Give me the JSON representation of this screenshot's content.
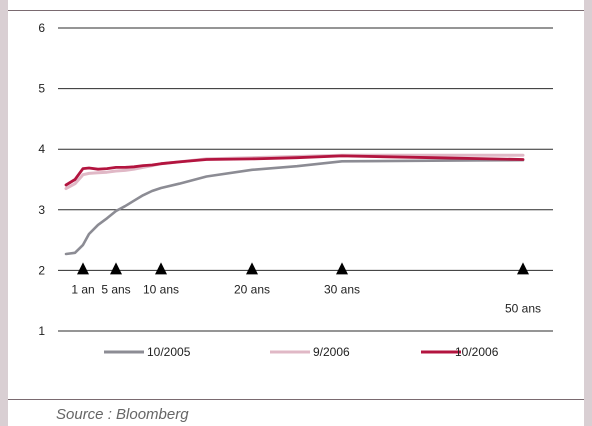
{
  "chart_data": {
    "type": "line",
    "title": "",
    "xlabel": "",
    "ylabel": "",
    "ylim": [
      1,
      6
    ],
    "yticks": [
      "1",
      "2",
      "3",
      "4",
      "5",
      "6"
    ],
    "grid": true,
    "legend_position": "bottom",
    "x": [
      0.25,
      0.5,
      1,
      2,
      3,
      4,
      5,
      6,
      7,
      8,
      9,
      10,
      12,
      15,
      20,
      25,
      30,
      40,
      50
    ],
    "series": [
      {
        "name": "10/2005",
        "color": "#8c8c94",
        "values": [
          2.27,
          2.29,
          2.42,
          2.6,
          2.75,
          2.86,
          2.98,
          3.06,
          3.15,
          3.24,
          3.31,
          3.36,
          3.43,
          3.55,
          3.66,
          3.72,
          3.8,
          3.81,
          3.82
        ]
      },
      {
        "name": "9/2006",
        "color": "#e0b8c6",
        "values": [
          3.35,
          3.43,
          3.58,
          3.6,
          3.61,
          3.62,
          3.64,
          3.65,
          3.67,
          3.7,
          3.73,
          3.76,
          3.79,
          3.84,
          3.86,
          3.88,
          3.9,
          3.9,
          3.9
        ]
      },
      {
        "name": "10/2006",
        "color": "#b3143f",
        "values": [
          3.41,
          3.5,
          3.68,
          3.69,
          3.67,
          3.68,
          3.7,
          3.7,
          3.71,
          3.73,
          3.74,
          3.76,
          3.79,
          3.83,
          3.84,
          3.86,
          3.89,
          3.86,
          3.83
        ]
      }
    ],
    "maturity_markers": [
      {
        "label": "1 an",
        "x": 1
      },
      {
        "label": "5 ans",
        "x": 5
      },
      {
        "label": "10 ans",
        "x": 10
      },
      {
        "label": "20 ans",
        "x": 20
      },
      {
        "label": "30 ans",
        "x": 30
      },
      {
        "label": "50 ans",
        "x": 50
      }
    ]
  },
  "source": "Source : Bloomberg"
}
